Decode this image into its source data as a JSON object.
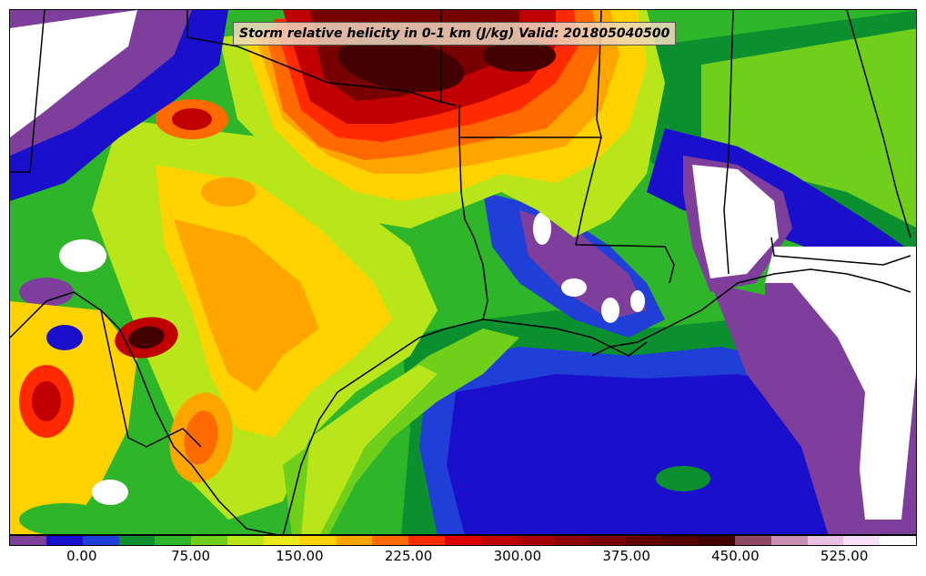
{
  "title": "Storm relative helicity in 0-1 km (J/kg) Valid: 201805040500",
  "colorbar": {
    "colors": [
      "#7e3f9c",
      "#1a10cc",
      "#1f3fd6",
      "#0c8f2f",
      "#2fb52a",
      "#6fcf1a",
      "#b8e61a",
      "#e8e81a",
      "#ffd200",
      "#ffa500",
      "#ff6a00",
      "#ff2a00",
      "#e00000",
      "#c00000",
      "#a80000",
      "#8c0000",
      "#780000",
      "#650000",
      "#520000",
      "#420000",
      "#8c4a63",
      "#c88fb0",
      "#e8c0e0",
      "#f5e0f5",
      "#ffffff"
    ],
    "tick_labels": [
      "0.00",
      "75.00",
      "150.00",
      "225.00",
      "300.00",
      "375.00",
      "450.00",
      "525.00"
    ],
    "tick_positions": [
      0.08,
      0.2,
      0.32,
      0.44,
      0.56,
      0.68,
      0.8,
      0.92
    ]
  },
  "palette": {
    "white": "#ffffff",
    "purple": "#7e3f9c",
    "blue": "#1a10cc",
    "blue2": "#1f3fd6",
    "dkgreen": "#0c8f2f",
    "green": "#2fb52a",
    "ltgreen": "#6fcf1a",
    "yellowgreen": "#b8e61a",
    "yellow": "#ffd200",
    "orange": "#ffa500",
    "dkorange": "#ff6a00",
    "red": "#ff2a00",
    "dkred": "#c00000",
    "maroon": "#780000",
    "ddmaroon": "#420000",
    "border": "#000000"
  }
}
